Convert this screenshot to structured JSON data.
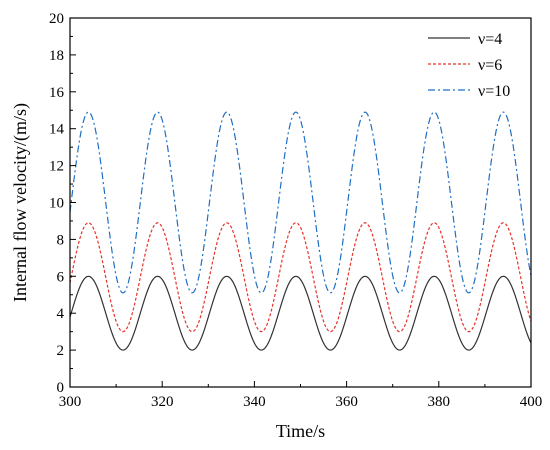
{
  "chart_data": {
    "type": "line",
    "title": "",
    "xlabel": "Time/s",
    "ylabel": "Internal flow velocity/(m/s)",
    "xlim": [
      300,
      400
    ],
    "ylim": [
      0,
      20
    ],
    "xticks": [
      300,
      320,
      340,
      360,
      380,
      400
    ],
    "yticks": [
      0,
      2,
      4,
      6,
      8,
      10,
      12,
      14,
      16,
      18,
      20
    ],
    "grid": false,
    "legend_position": "top-right",
    "period": 15,
    "series": [
      {
        "name": "ν=4",
        "color": "#333333",
        "style": "solid",
        "min": 2.0,
        "max": 6.0,
        "first_peak": 304,
        "x": [
          300,
          304,
          311.5,
          319,
          326.5,
          334,
          341.5,
          349,
          356.5,
          364,
          371.5,
          379,
          386.5,
          394,
          400
        ],
        "y": [
          4.0,
          6.0,
          2.0,
          6.0,
          2.0,
          6.0,
          2.0,
          6.0,
          2.0,
          6.0,
          2.0,
          6.0,
          2.0,
          6.0,
          2.4
        ]
      },
      {
        "name": "ν=6",
        "color": "#e8332a",
        "style": "dashed",
        "min": 3.0,
        "max": 8.9,
        "first_peak": 304,
        "x": [
          300,
          304,
          311.5,
          319,
          326.5,
          334,
          341.5,
          349,
          356.5,
          364,
          371.5,
          379,
          386.5,
          394,
          400
        ],
        "y": [
          6.0,
          8.9,
          3.0,
          8.9,
          3.0,
          8.9,
          3.0,
          8.9,
          3.0,
          8.9,
          3.0,
          8.9,
          3.0,
          8.9,
          3.6
        ]
      },
      {
        "name": "ν=10",
        "color": "#1f6fc5",
        "style": "dashdot",
        "min": 5.1,
        "max": 14.9,
        "first_peak": 304,
        "x": [
          300,
          304,
          311.5,
          319,
          326.5,
          334,
          341.5,
          349,
          356.5,
          364,
          371.5,
          379,
          386.5,
          394,
          400
        ],
        "y": [
          10.0,
          14.9,
          5.1,
          14.9,
          5.1,
          14.9,
          5.1,
          14.9,
          5.1,
          14.9,
          5.1,
          14.9,
          5.1,
          14.9,
          6.2
        ]
      }
    ]
  }
}
